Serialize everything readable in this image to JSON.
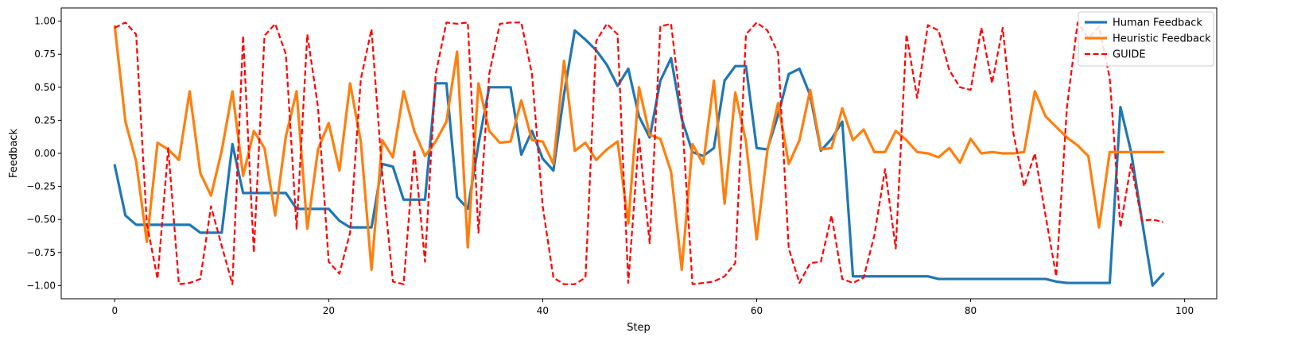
{
  "chart_data": {
    "type": "line",
    "title": "",
    "xlabel": "Step",
    "ylabel": "Feedback",
    "xlim": [
      -5,
      103
    ],
    "ylim": [
      -1.1,
      1.1
    ],
    "xticks": [
      0,
      20,
      40,
      60,
      80,
      100
    ],
    "yticks": [
      -1.0,
      -0.75,
      -0.5,
      -0.25,
      0.0,
      0.25,
      0.5,
      0.75,
      1.0
    ],
    "xtick_labels": [
      "0",
      "20",
      "40",
      "60",
      "80",
      "100"
    ],
    "ytick_labels": [
      "−1.00",
      "−0.75",
      "−0.50",
      "−0.25",
      "0.00",
      "0.25",
      "0.50",
      "0.75",
      "1.00"
    ],
    "grid": false,
    "legend_position": "top-right",
    "series": [
      {
        "name": "Human Feedback",
        "color": "#1f77b4",
        "style": "solid",
        "values": [
          -0.09,
          -0.47,
          -0.54,
          -0.54,
          -0.54,
          -0.54,
          -0.54,
          -0.54,
          -0.6,
          -0.6,
          -0.6,
          0.07,
          -0.3,
          -0.3,
          -0.3,
          -0.3,
          -0.3,
          -0.42,
          -0.42,
          -0.42,
          -0.42,
          -0.51,
          -0.56,
          -0.56,
          -0.56,
          -0.08,
          -0.1,
          -0.35,
          -0.35,
          -0.35,
          0.53,
          0.53,
          -0.33,
          -0.42,
          0.07,
          0.5,
          0.5,
          0.5,
          -0.01,
          0.17,
          -0.04,
          -0.13,
          0.45,
          0.93,
          0.86,
          0.78,
          0.67,
          0.51,
          0.64,
          0.28,
          0.12,
          0.55,
          0.72,
          0.26,
          0.01,
          -0.02,
          0.04,
          0.55,
          0.66,
          0.66,
          0.04,
          0.03,
          0.29,
          0.6,
          0.64,
          0.44,
          0.02,
          0.11,
          0.24,
          -0.93,
          -0.93,
          -0.93,
          -0.93,
          -0.93,
          -0.93,
          -0.93,
          -0.93,
          -0.95,
          -0.95,
          -0.95,
          -0.95,
          -0.95,
          -0.95,
          -0.95,
          -0.95,
          -0.95,
          -0.95,
          -0.95,
          -0.97,
          -0.98,
          -0.98,
          -0.98,
          -0.98,
          -0.98,
          0.35,
          0.01,
          -0.5,
          -1.0,
          -0.91
        ]
      },
      {
        "name": "Heuristic Feedback",
        "color": "#ff7f0e",
        "style": "solid",
        "values": [
          0.96,
          0.24,
          -0.06,
          -0.67,
          0.08,
          0.03,
          -0.05,
          0.47,
          -0.15,
          -0.32,
          0.02,
          0.47,
          -0.17,
          0.17,
          0.04,
          -0.47,
          0.13,
          0.47,
          -0.57,
          0.03,
          0.23,
          -0.13,
          0.53,
          0.09,
          -0.88,
          0.1,
          -0.03,
          0.47,
          0.17,
          -0.02,
          0.09,
          0.24,
          0.77,
          -0.71,
          0.53,
          0.17,
          0.08,
          0.09,
          0.4,
          0.1,
          0.09,
          -0.08,
          0.7,
          0.02,
          0.08,
          -0.05,
          0.03,
          0.09,
          -0.53,
          0.5,
          0.14,
          0.11,
          -0.14,
          -0.88,
          0.07,
          -0.08,
          0.55,
          -0.38,
          0.46,
          0.09,
          -0.65,
          0.02,
          0.38,
          -0.08,
          0.1,
          0.48,
          0.03,
          0.04,
          0.34,
          0.1,
          0.18,
          0.01,
          0.01,
          0.17,
          0.1,
          0.01,
          0.0,
          -0.03,
          0.04,
          -0.07,
          0.11,
          0.0,
          0.01,
          0.0,
          0.0,
          0.01,
          0.47,
          0.28,
          0.2,
          0.12,
          0.06,
          -0.02,
          -0.56,
          0.01,
          0.01,
          0.01,
          0.01,
          0.01,
          0.01
        ]
      },
      {
        "name": "GUIDE",
        "color": "#ff0000",
        "style": "dashed",
        "values": [
          0.95,
          0.99,
          0.9,
          -0.53,
          -0.95,
          0.04,
          -0.99,
          -0.98,
          -0.95,
          -0.4,
          -0.7,
          -0.99,
          0.89,
          -0.75,
          0.89,
          0.98,
          0.75,
          -0.57,
          0.9,
          0.35,
          -0.82,
          -0.91,
          -0.6,
          0.56,
          0.94,
          -0.15,
          -0.97,
          -0.99,
          0.03,
          -0.82,
          0.6,
          0.99,
          0.98,
          0.99,
          -0.6,
          0.6,
          0.98,
          0.99,
          0.99,
          0.6,
          -0.4,
          -0.94,
          -0.99,
          -0.99,
          -0.94,
          0.85,
          0.98,
          0.9,
          -0.98,
          0.12,
          -0.68,
          0.96,
          0.98,
          0.3,
          -0.99,
          -0.98,
          -0.97,
          -0.93,
          -0.83,
          0.9,
          0.99,
          0.93,
          0.76,
          -0.72,
          -0.98,
          -0.83,
          -0.82,
          -0.47,
          -0.95,
          -0.98,
          -0.94,
          -0.62,
          -0.12,
          -0.72,
          0.9,
          0.42,
          0.97,
          0.93,
          0.63,
          0.5,
          0.48,
          0.95,
          0.53,
          0.95,
          0.15,
          -0.25,
          0.0,
          -0.47,
          -0.93,
          0.35,
          0.99,
          0.87,
          0.96,
          0.57,
          -0.56,
          -0.08,
          -0.51,
          -0.5,
          -0.52
        ]
      }
    ]
  }
}
